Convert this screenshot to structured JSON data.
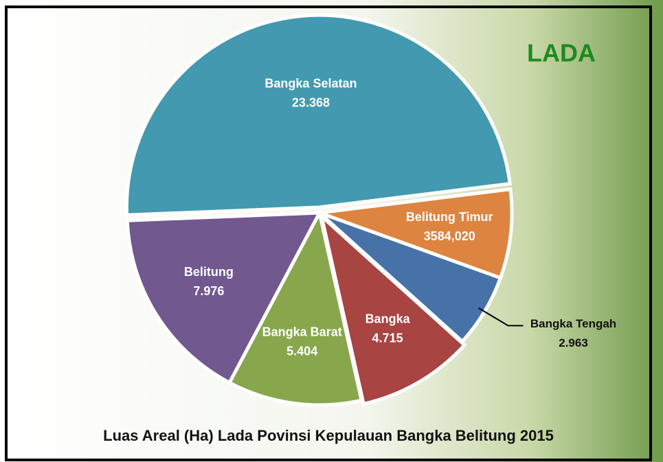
{
  "chart_data": {
    "type": "pie",
    "title": "Luas Areal (Ha) Lada Povinsi Kepulauan Bangka Belitung 2015",
    "subtitle": "LADA",
    "categories": [
      "Bangka Selatan",
      "Belitung Timur",
      "Bangka Tengah",
      "Bangka",
      "Bangka Barat",
      "Belitung"
    ],
    "values": [
      23368,
      3584.02,
      2963,
      4715,
      5404,
      7976
    ],
    "value_labels": [
      "23.368",
      "3584,020",
      "2.963",
      "4.715",
      "5.404",
      "7.976"
    ],
    "colors": [
      "#4399b0",
      "#dd8440",
      "#4672a8",
      "#a84442",
      "#88a74c",
      "#71588f"
    ]
  }
}
